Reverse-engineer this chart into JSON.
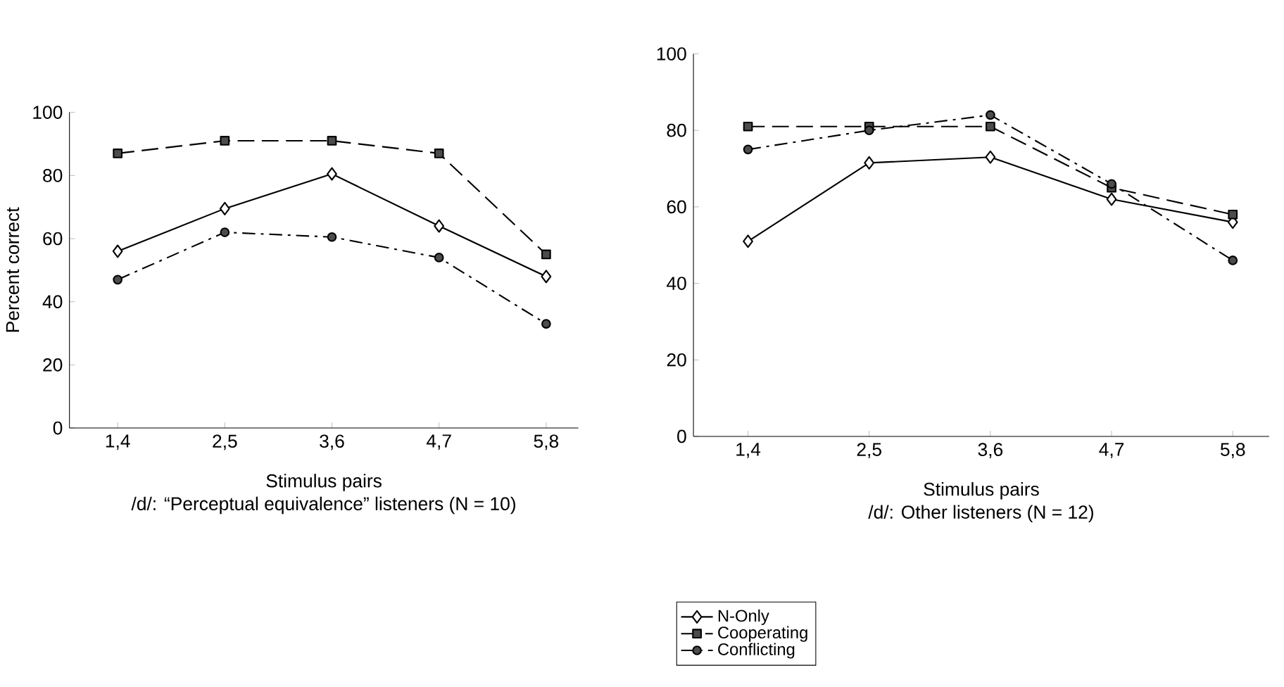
{
  "chart_data": [
    {
      "type": "line",
      "title": "/d/: “Perceptual equivalence” listeners (N = 10)",
      "xlabel": "Stimulus pairs",
      "ylabel": "Percent correct",
      "categories": [
        "1,4",
        "2,5",
        "3,6",
        "4,7",
        "5,8"
      ],
      "ylim": [
        0,
        100
      ],
      "yticks": [
        0,
        20,
        40,
        60,
        80,
        100
      ],
      "legend": "bottom",
      "series": [
        {
          "name": "N-Only",
          "color": "#000000",
          "marker": "diamond",
          "line_style": "solid",
          "values": [
            56,
            69.5,
            80.5,
            64,
            48
          ]
        },
        {
          "name": "Cooperating",
          "color": "#000000",
          "marker": "square",
          "line_style": "dashed",
          "values": [
            87,
            91,
            91,
            87,
            55
          ]
        },
        {
          "name": "Conflicting",
          "color": "#000000",
          "marker": "circle",
          "line_style": "dashdot",
          "values": [
            47,
            62,
            60.5,
            54,
            33
          ]
        }
      ]
    },
    {
      "type": "line",
      "title": "/d/: Other listeners (N = 12)",
      "xlabel": "Stimulus pairs",
      "categories": [
        "1,4",
        "2,5",
        "3,6",
        "4,7",
        "5,8"
      ],
      "ylim": [
        0,
        100
      ],
      "yticks": [
        0,
        20,
        40,
        60,
        80,
        100
      ],
      "series": [
        {
          "color": "#000000",
          "marker": "diamond",
          "line_style": "solid",
          "values": [
            51,
            71.5,
            73,
            62,
            56
          ]
        },
        {
          "color": "#000000",
          "marker": "square",
          "line_style": "dashed",
          "values": [
            81,
            81,
            81,
            65,
            58
          ]
        },
        {
          "color": "#000000",
          "marker": "circle",
          "line_style": "dashdot",
          "values": [
            75,
            80,
            84,
            66,
            46
          ]
        }
      ]
    }
  ]
}
